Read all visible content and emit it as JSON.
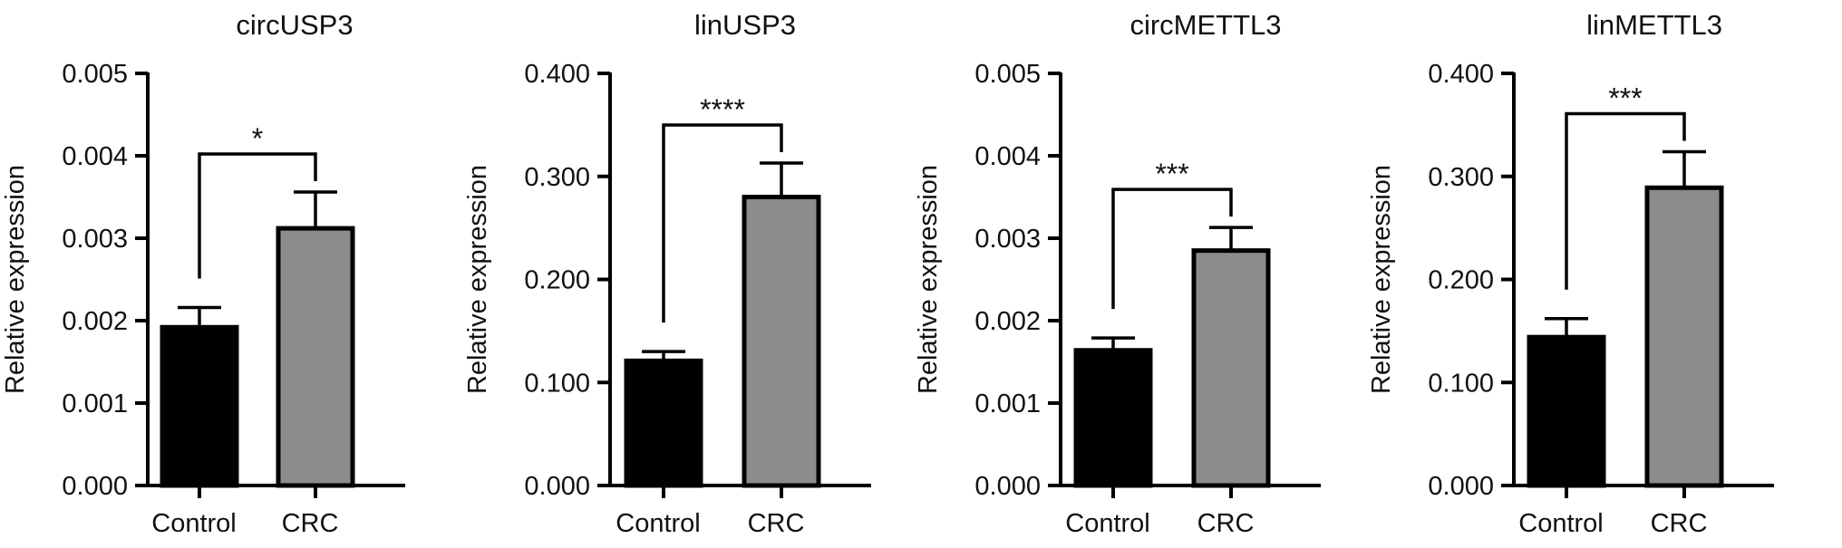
{
  "chart_data": [
    {
      "type": "bar",
      "title": "circUSP3",
      "ylabel": "Relative expression",
      "xlabel": "",
      "categories": [
        "Control",
        "CRC"
      ],
      "values": [
        0.00192,
        0.00312
      ],
      "errors": [
        0.00024,
        0.00044
      ],
      "ylim": [
        0,
        0.005
      ],
      "yticks": [
        0,
        0.001,
        0.002,
        0.003,
        0.004,
        0.005
      ],
      "ytick_labels": [
        "0.000",
        "0.001",
        "0.002",
        "0.003",
        "0.004",
        "0.005"
      ],
      "bar_colors": [
        "#000000",
        "#8c8c8c"
      ],
      "significance": "*",
      "grid": false
    },
    {
      "type": "bar",
      "title": "linUSP3",
      "ylabel": "Relative expression",
      "xlabel": "",
      "categories": [
        "Control",
        "CRC"
      ],
      "values": [
        0.121,
        0.28
      ],
      "errors": [
        0.009,
        0.033
      ],
      "ylim": [
        0,
        0.4
      ],
      "yticks": [
        0,
        0.1,
        0.2,
        0.3,
        0.4
      ],
      "ytick_labels": [
        "0.000",
        "0.100",
        "0.200",
        "0.300",
        "0.400"
      ],
      "bar_colors": [
        "#000000",
        "#8c8c8c"
      ],
      "significance": "****",
      "grid": false
    },
    {
      "type": "bar",
      "title": "circMETTL3",
      "ylabel": "Relative expression",
      "xlabel": "",
      "categories": [
        "Control",
        "CRC"
      ],
      "values": [
        0.00164,
        0.00285
      ],
      "errors": [
        0.00015,
        0.00028
      ],
      "ylim": [
        0,
        0.005
      ],
      "yticks": [
        0,
        0.001,
        0.002,
        0.003,
        0.004,
        0.005
      ],
      "ytick_labels": [
        "0.000",
        "0.001",
        "0.002",
        "0.003",
        "0.004",
        "0.005"
      ],
      "bar_colors": [
        "#000000",
        "#8c8c8c"
      ],
      "significance": "***",
      "grid": false
    },
    {
      "type": "bar",
      "title": "linMETTL3",
      "ylabel": "Relative expression",
      "xlabel": "",
      "categories": [
        "Control",
        "CRC"
      ],
      "values": [
        0.144,
        0.289
      ],
      "errors": [
        0.018,
        0.035
      ],
      "ylim": [
        0,
        0.4
      ],
      "yticks": [
        0,
        0.1,
        0.2,
        0.3,
        0.4
      ],
      "ytick_labels": [
        "0.000",
        "0.100",
        "0.200",
        "0.300",
        "0.400"
      ],
      "bar_colors": [
        "#000000",
        "#8c8c8c"
      ],
      "significance": "***",
      "grid": false
    }
  ]
}
